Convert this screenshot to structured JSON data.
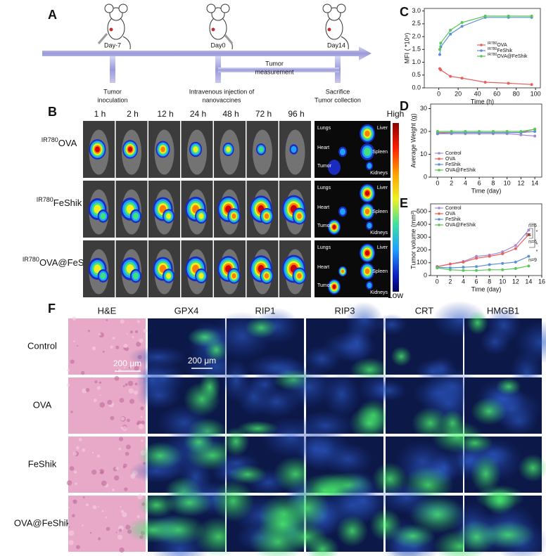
{
  "panel_labels": [
    "A",
    "B",
    "C",
    "D",
    "E",
    "F"
  ],
  "timeline": {
    "days": [
      "Day-7",
      "Day0",
      "Day14"
    ],
    "events": [
      [
        "Tumor",
        "inoculation"
      ],
      [
        "Intravenous injection of",
        "nanovaccines"
      ],
      [
        "Tumor",
        "measurement"
      ],
      [
        "Sacrifice",
        "Tumor collection"
      ]
    ]
  },
  "imaging": {
    "times": [
      "1 h",
      "2 h",
      "12 h",
      "24 h",
      "48 h",
      "72 h",
      "96 h"
    ],
    "groups": [
      {
        "prefix": "IR780",
        "name": "OVA"
      },
      {
        "prefix": "IR780",
        "name": "FeShik"
      },
      {
        "prefix": "IR780",
        "name": "OVA@FeShik"
      }
    ],
    "organs": [
      "Lungs",
      "Liver",
      "Heart",
      "Spleen",
      "Tumor",
      "Kidneys"
    ],
    "scale": [
      "High",
      "Low"
    ]
  },
  "histology": {
    "stains": [
      "H&E",
      "GPX4",
      "RIP1",
      "RIP3",
      "CRT",
      "HMGB1"
    ],
    "groups": [
      "Control",
      "OVA",
      "FeShik",
      "OVA@FeShik"
    ],
    "scale_bars": [
      "200 μm",
      "200 μm"
    ]
  },
  "chart_data": [
    {
      "type": "line",
      "x_label": "Time (h)",
      "y_label": "MFI ( *10⁸)",
      "x": [
        1,
        2,
        12,
        24,
        48,
        72,
        96
      ],
      "xlim": [
        -15,
        105
      ],
      "xticks": [
        0,
        20,
        40,
        60,
        80,
        100
      ],
      "ylim": [
        0,
        3.1
      ],
      "yticks": [
        {
          "value": 0,
          "label": "0.0"
        },
        0.5,
        {
          "value": 1,
          "label": "1.0"
        },
        1.5,
        {
          "value": 2,
          "label": "2.0"
        },
        2.5,
        {
          "value": 3,
          "label": "3.0"
        }
      ],
      "legend": "right",
      "series": [
        {
          "prefix": "IR780",
          "name": "OVA",
          "color": "#e8605a",
          "values": [
            0.75,
            0.7,
            0.45,
            0.38,
            0.22,
            0.18,
            0.13
          ]
        },
        {
          "prefix": "IR780",
          "name": "FeShik",
          "color": "#5b8fd6",
          "values": [
            1.3,
            1.6,
            2.1,
            2.4,
            2.75,
            2.75,
            2.75
          ]
        },
        {
          "prefix": "IR780",
          "name": "OVA@FeShik",
          "color": "#55c855",
          "values": [
            1.5,
            1.75,
            2.25,
            2.55,
            2.8,
            2.8,
            2.8
          ]
        }
      ]
    },
    {
      "type": "line",
      "x_label": "Time (day)",
      "y_label": "Average Weight (g)",
      "x": [
        0,
        2,
        4,
        6,
        8,
        10,
        12,
        14
      ],
      "xlim": [
        -1,
        15
      ],
      "xticks": [
        0,
        2,
        4,
        6,
        8,
        10,
        12,
        14
      ],
      "ylim": [
        0,
        32
      ],
      "yticks": [
        0,
        10,
        20,
        30
      ],
      "legend": "lower left",
      "series": [
        {
          "name": "Control",
          "color": "#a68ad6",
          "values": [
            19,
            19,
            19,
            19,
            19,
            19,
            18.5,
            18
          ]
        },
        {
          "name": "OVA",
          "color": "#e8605a",
          "values": [
            19.5,
            19.5,
            19.5,
            19.5,
            19.5,
            19.5,
            19.5,
            21
          ]
        },
        {
          "name": "FeShik",
          "color": "#5b8fd6",
          "values": [
            19,
            19.5,
            19.5,
            19.5,
            19.5,
            19.5,
            19.5,
            20
          ]
        },
        {
          "name": "OVA@FeShik",
          "color": "#55c855",
          "values": [
            20,
            20,
            20,
            20,
            20,
            20,
            20,
            21
          ]
        }
      ]
    },
    {
      "type": "line",
      "x_label": "Time (day)",
      "y_label": "Tumor volume (mm³)",
      "x": [
        0,
        2,
        4,
        6,
        8,
        10,
        12,
        14
      ],
      "xlim": [
        -1,
        16
      ],
      "xticks": [
        0,
        2,
        4,
        6,
        8,
        10,
        12,
        14,
        16
      ],
      "ylim": [
        0,
        560
      ],
      "yticks": [
        0,
        100,
        200,
        300,
        400,
        500
      ],
      "legend": "upper left",
      "annotations": [
        "n=6",
        "ns",
        "n=6",
        "*",
        "*",
        "*",
        "n=9"
      ],
      "series": [
        {
          "name": "Control",
          "color": "#a68ad6",
          "values": [
            70,
            90,
            110,
            150,
            160,
            185,
            235,
            355
          ]
        },
        {
          "name": "OVA",
          "color": "#e8605a",
          "values": [
            70,
            90,
            105,
            135,
            150,
            170,
            210,
            320
          ]
        },
        {
          "name": "FeShik",
          "color": "#5b8fd6",
          "values": [
            65,
            60,
            65,
            70,
            85,
            95,
            105,
            150
          ]
        },
        {
          "name": "OVA@FeShik",
          "color": "#55c855",
          "values": [
            60,
            45,
            40,
            40,
            45,
            45,
            55,
            75
          ]
        }
      ]
    }
  ]
}
